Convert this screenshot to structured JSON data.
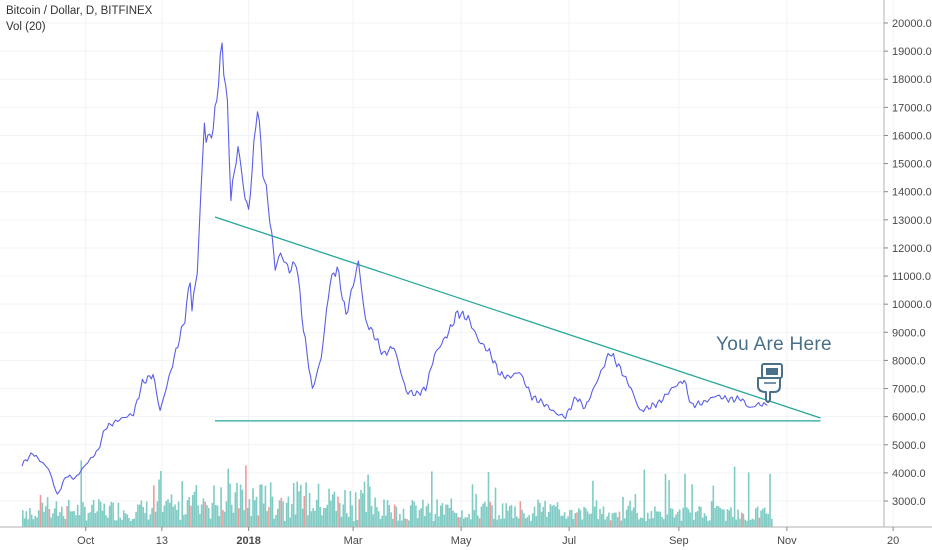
{
  "header": {
    "title": "Bitcoin / Dollar, D, BITFINEX",
    "indicator": "Vol (20)"
  },
  "annotation": {
    "text": "You Are Here",
    "icon": "pointing-hand-icon"
  },
  "colors": {
    "price_line": "#5b5fe8",
    "trend_lines": "#26a69a",
    "volume_up": "#80cbc4",
    "volume_down": "#ef9a9a",
    "annotation": "#4a6f8a"
  },
  "chart_data": {
    "type": "line",
    "series": [
      {
        "x": [
          "2017-08-26",
          "2017-09-01",
          "2017-09-05",
          "2017-09-10",
          "2017-09-15",
          "2017-09-20",
          "2017-09-25",
          "2017-10-01",
          "2017-10-08",
          "2017-10-12",
          "2017-10-20",
          "2017-10-28",
          "2017-11-02",
          "2017-11-08",
          "2017-11-12",
          "2017-11-20",
          "2017-11-26",
          "2017-11-29",
          "2017-11-30",
          "2017-12-03",
          "2017-12-07",
          "2017-12-08",
          "2017-12-12",
          "2017-12-17",
          "2017-12-20",
          "2017-12-22",
          "2017-12-26",
          "2017-12-30",
          "2018-01-01",
          "2018-01-06",
          "2018-01-09",
          "2018-01-12",
          "2018-01-16",
          "2018-01-19",
          "2018-01-24",
          "2018-01-28",
          "2018-02-01",
          "2018-02-06",
          "2018-02-11",
          "2018-02-16",
          "2018-02-20",
          "2018-02-25",
          "2018-03-04",
          "2018-03-08",
          "2018-03-13",
          "2018-03-18",
          "2018-03-24",
          "2018-03-31",
          "2018-04-06",
          "2018-04-11",
          "2018-04-16",
          "2018-04-24",
          "2018-04-29",
          "2018-05-05",
          "2018-05-11",
          "2018-05-17",
          "2018-05-23",
          "2018-05-28",
          "2018-06-03",
          "2018-06-10",
          "2018-06-16",
          "2018-06-24",
          "2018-06-29",
          "2018-07-05",
          "2018-07-10",
          "2018-07-17",
          "2018-07-24",
          "2018-07-29",
          "2018-08-05",
          "2018-08-10",
          "2018-08-14",
          "2018-08-21",
          "2018-08-28",
          "2018-09-04",
          "2018-09-08",
          "2018-09-15",
          "2018-09-22",
          "2018-09-30",
          "2018-10-06",
          "2018-10-11",
          "2018-10-16",
          "2018-10-21"
        ],
        "values": [
          4300,
          4700,
          4450,
          4150,
          3200,
          3900,
          3800,
          4300,
          4800,
          5600,
          5900,
          6100,
          7200,
          7500,
          6200,
          8100,
          9500,
          10900,
          9800,
          11200,
          16500,
          15800,
          16200,
          19200,
          17000,
          13800,
          15600,
          13800,
          13300,
          17100,
          14800,
          13600,
          11300,
          11800,
          11200,
          11500,
          9100,
          6950,
          8100,
          10800,
          11300,
          9600,
          11500,
          9400,
          8900,
          8200,
          8500,
          6900,
          6800,
          7000,
          8200,
          9000,
          9700,
          9500,
          8700,
          8300,
          7500,
          7400,
          7600,
          6700,
          6500,
          6100,
          6000,
          6700,
          6300,
          7300,
          8300,
          7800,
          7000,
          6200,
          6300,
          6500,
          7000,
          7300,
          6400,
          6500,
          6750,
          6600,
          6650,
          6300,
          6450,
          6400
        ]
      }
    ],
    "volume_label": "Vol (20)",
    "trendlines": [
      {
        "name": "descending-resistance",
        "start": {
          "x": "2017-12-13",
          "y": 13100
        },
        "end": {
          "x": "2018-11-20",
          "y": 5950
        }
      },
      {
        "name": "horizontal-support",
        "start": {
          "x": "2017-12-13",
          "y": 5850
        },
        "end": {
          "x": "2018-11-20",
          "y": 5850
        }
      }
    ],
    "y_ticks": [
      "3000.0",
      "4000.0",
      "5000.0",
      "6000.0",
      "7000.0",
      "8000.0",
      "9000.0",
      "10000.0",
      "11000.0",
      "12000.0",
      "13000.0",
      "14000.0",
      "15000.0",
      "16000.0",
      "17000.0",
      "18000.0",
      "19000.0",
      "20000.0"
    ],
    "x_ticks": [
      {
        "label": "Oct",
        "date": "2017-10-01",
        "bold": false
      },
      {
        "label": "13",
        "date": "2017-11-13",
        "bold": false
      },
      {
        "label": "2018",
        "date": "2018-01-01",
        "bold": true
      },
      {
        "label": "Mar",
        "date": "2018-03-01",
        "bold": false
      },
      {
        "label": "May",
        "date": "2018-05-01",
        "bold": false
      },
      {
        "label": "Jul",
        "date": "2018-07-01",
        "bold": false
      },
      {
        "label": "Sep",
        "date": "2018-09-01",
        "bold": false
      },
      {
        "label": "Nov",
        "date": "2018-11-01",
        "bold": false
      },
      {
        "label": "20",
        "date": "2018-12-31",
        "bold": false
      }
    ],
    "ylim": [
      2000,
      20500
    ],
    "xlim": [
      "2017-08-26",
      "2018-12-31"
    ],
    "grid": true,
    "scale": "linear"
  }
}
